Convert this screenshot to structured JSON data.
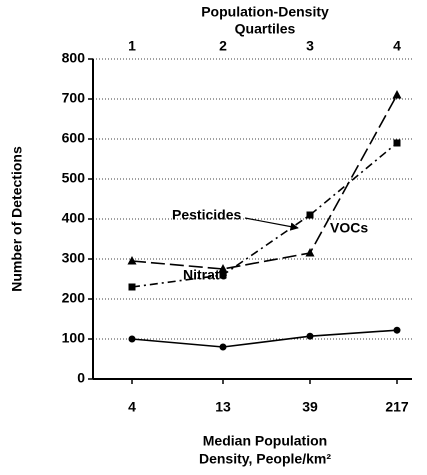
{
  "chart_data": {
    "type": "line",
    "title": [
      "Population-Density",
      "Quartiles"
    ],
    "top_categories": [
      "1",
      "2",
      "3",
      "4"
    ],
    "categories": [
      "4",
      "13",
      "39",
      "217"
    ],
    "xlabel": [
      "Median Population",
      "Density, People/km²"
    ],
    "ylabel": "Number of Detections",
    "ylim": [
      0,
      800
    ],
    "yticks": [
      0,
      100,
      200,
      300,
      400,
      500,
      600,
      700,
      800
    ],
    "grid": true,
    "series": [
      {
        "name": "Pesticides",
        "color": "#000000",
        "marker": "square",
        "dash": "dashdot",
        "values": [
          230,
          260,
          410,
          590
        ]
      },
      {
        "name": "VOCs",
        "color": "#000000",
        "marker": "triangle",
        "dash": "dashed",
        "values": [
          295,
          275,
          315,
          710
        ]
      },
      {
        "name": "Nitrate",
        "color": "#000000",
        "marker": "circle",
        "dash": "solid",
        "values": [
          100,
          80,
          107,
          122
        ]
      }
    ]
  }
}
